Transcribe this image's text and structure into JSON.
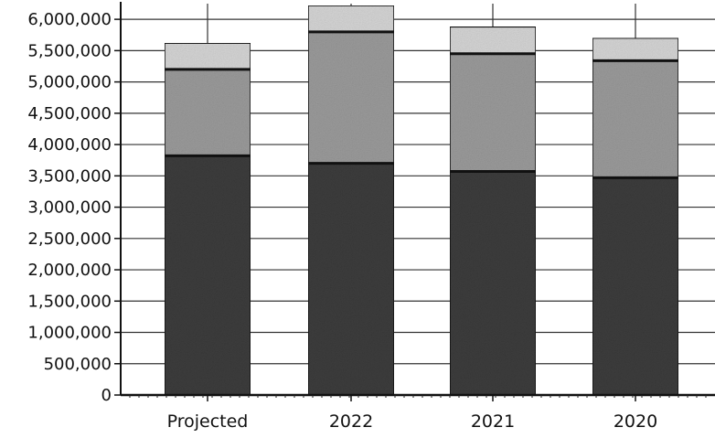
{
  "chart_data": {
    "type": "bar",
    "stacked": true,
    "categories": [
      "Projected",
      "2022",
      "2021",
      "2020"
    ],
    "series": [
      {
        "values": [
          3820000,
          3700000,
          3570000,
          3470000
        ],
        "color": "#3c3c3c"
      },
      {
        "values": [
          1380000,
          2100000,
          1880000,
          1870000
        ],
        "color": "#9a9a9a"
      },
      {
        "values": [
          420000,
          420000,
          430000,
          360000
        ],
        "color": "#d4d4d4"
      }
    ],
    "ylim": [
      0,
      6250000
    ],
    "y_ticks": [
      0,
      500000,
      1000000,
      1500000,
      2000000,
      2500000,
      3000000,
      3500000,
      4000000,
      4500000,
      5000000,
      5500000,
      6000000
    ],
    "y_tick_labels": [
      "0",
      "500,000",
      "1,000,000",
      "1,500,000",
      "2,000,000",
      "2,500,000",
      "3,000,000",
      "3,500,000",
      "4,000,000",
      "4,500,000",
      "5,000,000",
      "5,500,000",
      "6,000,000"
    ],
    "grid": true,
    "legend": "none"
  }
}
